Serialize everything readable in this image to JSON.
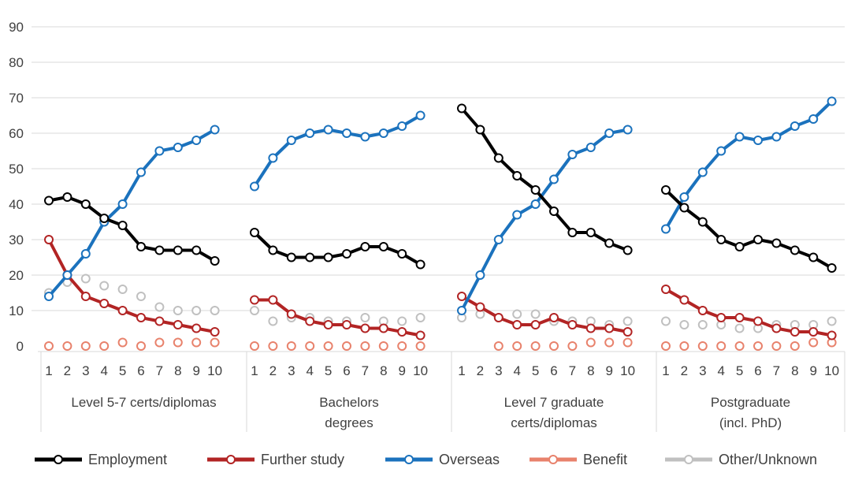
{
  "chart_data": {
    "type": "line",
    "title": "",
    "xlabel": "",
    "ylabel": "",
    "ylim": [
      0,
      90
    ],
    "yticks": [
      0,
      10,
      20,
      30,
      40,
      50,
      60,
      70,
      80,
      90
    ],
    "grid": true,
    "x_ticks": [
      "1",
      "2",
      "3",
      "4",
      "5",
      "6",
      "7",
      "8",
      "9",
      "10"
    ],
    "groups": [
      {
        "label_lines": [
          "Level 5-7 certs/diplomas"
        ],
        "series": {
          "employment": [
            41,
            42,
            40,
            36,
            34,
            28,
            27,
            27,
            27,
            24
          ],
          "further_study": [
            30,
            20,
            14,
            12,
            10,
            8,
            7,
            6,
            5,
            4
          ],
          "overseas": [
            14,
            20,
            26,
            35,
            40,
            49,
            55,
            56,
            58,
            61
          ],
          "benefit": [
            0,
            0,
            0,
            0,
            1,
            0,
            1,
            1,
            1,
            1
          ],
          "other": [
            15,
            18,
            19,
            17,
            16,
            14,
            11,
            10,
            10,
            10
          ]
        }
      },
      {
        "label_lines": [
          "Bachelors",
          "degrees"
        ],
        "series": {
          "employment": [
            32,
            27,
            25,
            25,
            25,
            26,
            28,
            28,
            26,
            23
          ],
          "further_study": [
            13,
            13,
            9,
            7,
            6,
            6,
            5,
            5,
            4,
            3
          ],
          "overseas": [
            45,
            53,
            58,
            60,
            61,
            60,
            59,
            60,
            62,
            65
          ],
          "benefit": [
            0,
            0,
            0,
            0,
            0,
            0,
            0,
            0,
            0,
            0
          ],
          "other": [
            10,
            7,
            8,
            8,
            7,
            7,
            8,
            7,
            7,
            8
          ]
        }
      },
      {
        "label_lines": [
          "Level 7 graduate",
          "certs/diplomas"
        ],
        "series": {
          "employment": [
            67,
            61,
            53,
            48,
            44,
            38,
            32,
            32,
            29,
            27
          ],
          "further_study": [
            14,
            11,
            8,
            6,
            6,
            8,
            6,
            5,
            5,
            4
          ],
          "overseas": [
            10,
            20,
            30,
            37,
            40,
            47,
            54,
            56,
            60,
            61
          ],
          "benefit": [
            null,
            null,
            0,
            0,
            0,
            0,
            0,
            1,
            1,
            1
          ],
          "other": [
            8,
            9,
            8,
            9,
            9,
            7,
            7,
            7,
            6,
            7
          ]
        }
      },
      {
        "label_lines": [
          "Postgraduate",
          "(incl. PhD)"
        ],
        "series": {
          "employment": [
            44,
            39,
            35,
            30,
            28,
            30,
            29,
            27,
            25,
            22
          ],
          "further_study": [
            16,
            13,
            10,
            8,
            8,
            7,
            5,
            4,
            4,
            3
          ],
          "overseas": [
            33,
            42,
            49,
            55,
            59,
            58,
            59,
            62,
            64,
            69
          ],
          "benefit": [
            0,
            0,
            0,
            0,
            0,
            0,
            0,
            0,
            1,
            1
          ],
          "other": [
            7,
            6,
            6,
            6,
            5,
            5,
            6,
            6,
            6,
            7
          ]
        }
      }
    ],
    "legend": [
      {
        "key": "employment",
        "label": "Employment",
        "color": "#000000",
        "width": 5
      },
      {
        "key": "further_study",
        "label": "Further study",
        "color": "#b22424",
        "width": 5
      },
      {
        "key": "overseas",
        "label": "Overseas",
        "color": "#1b72bd",
        "width": 5
      },
      {
        "key": "benefit",
        "label": "Benefit",
        "color": "#e8826c",
        "width": 5
      },
      {
        "key": "other",
        "label": "Other/Unknown",
        "color": "#c0c0c0",
        "width": 5
      }
    ],
    "legend_position": "bottom"
  }
}
